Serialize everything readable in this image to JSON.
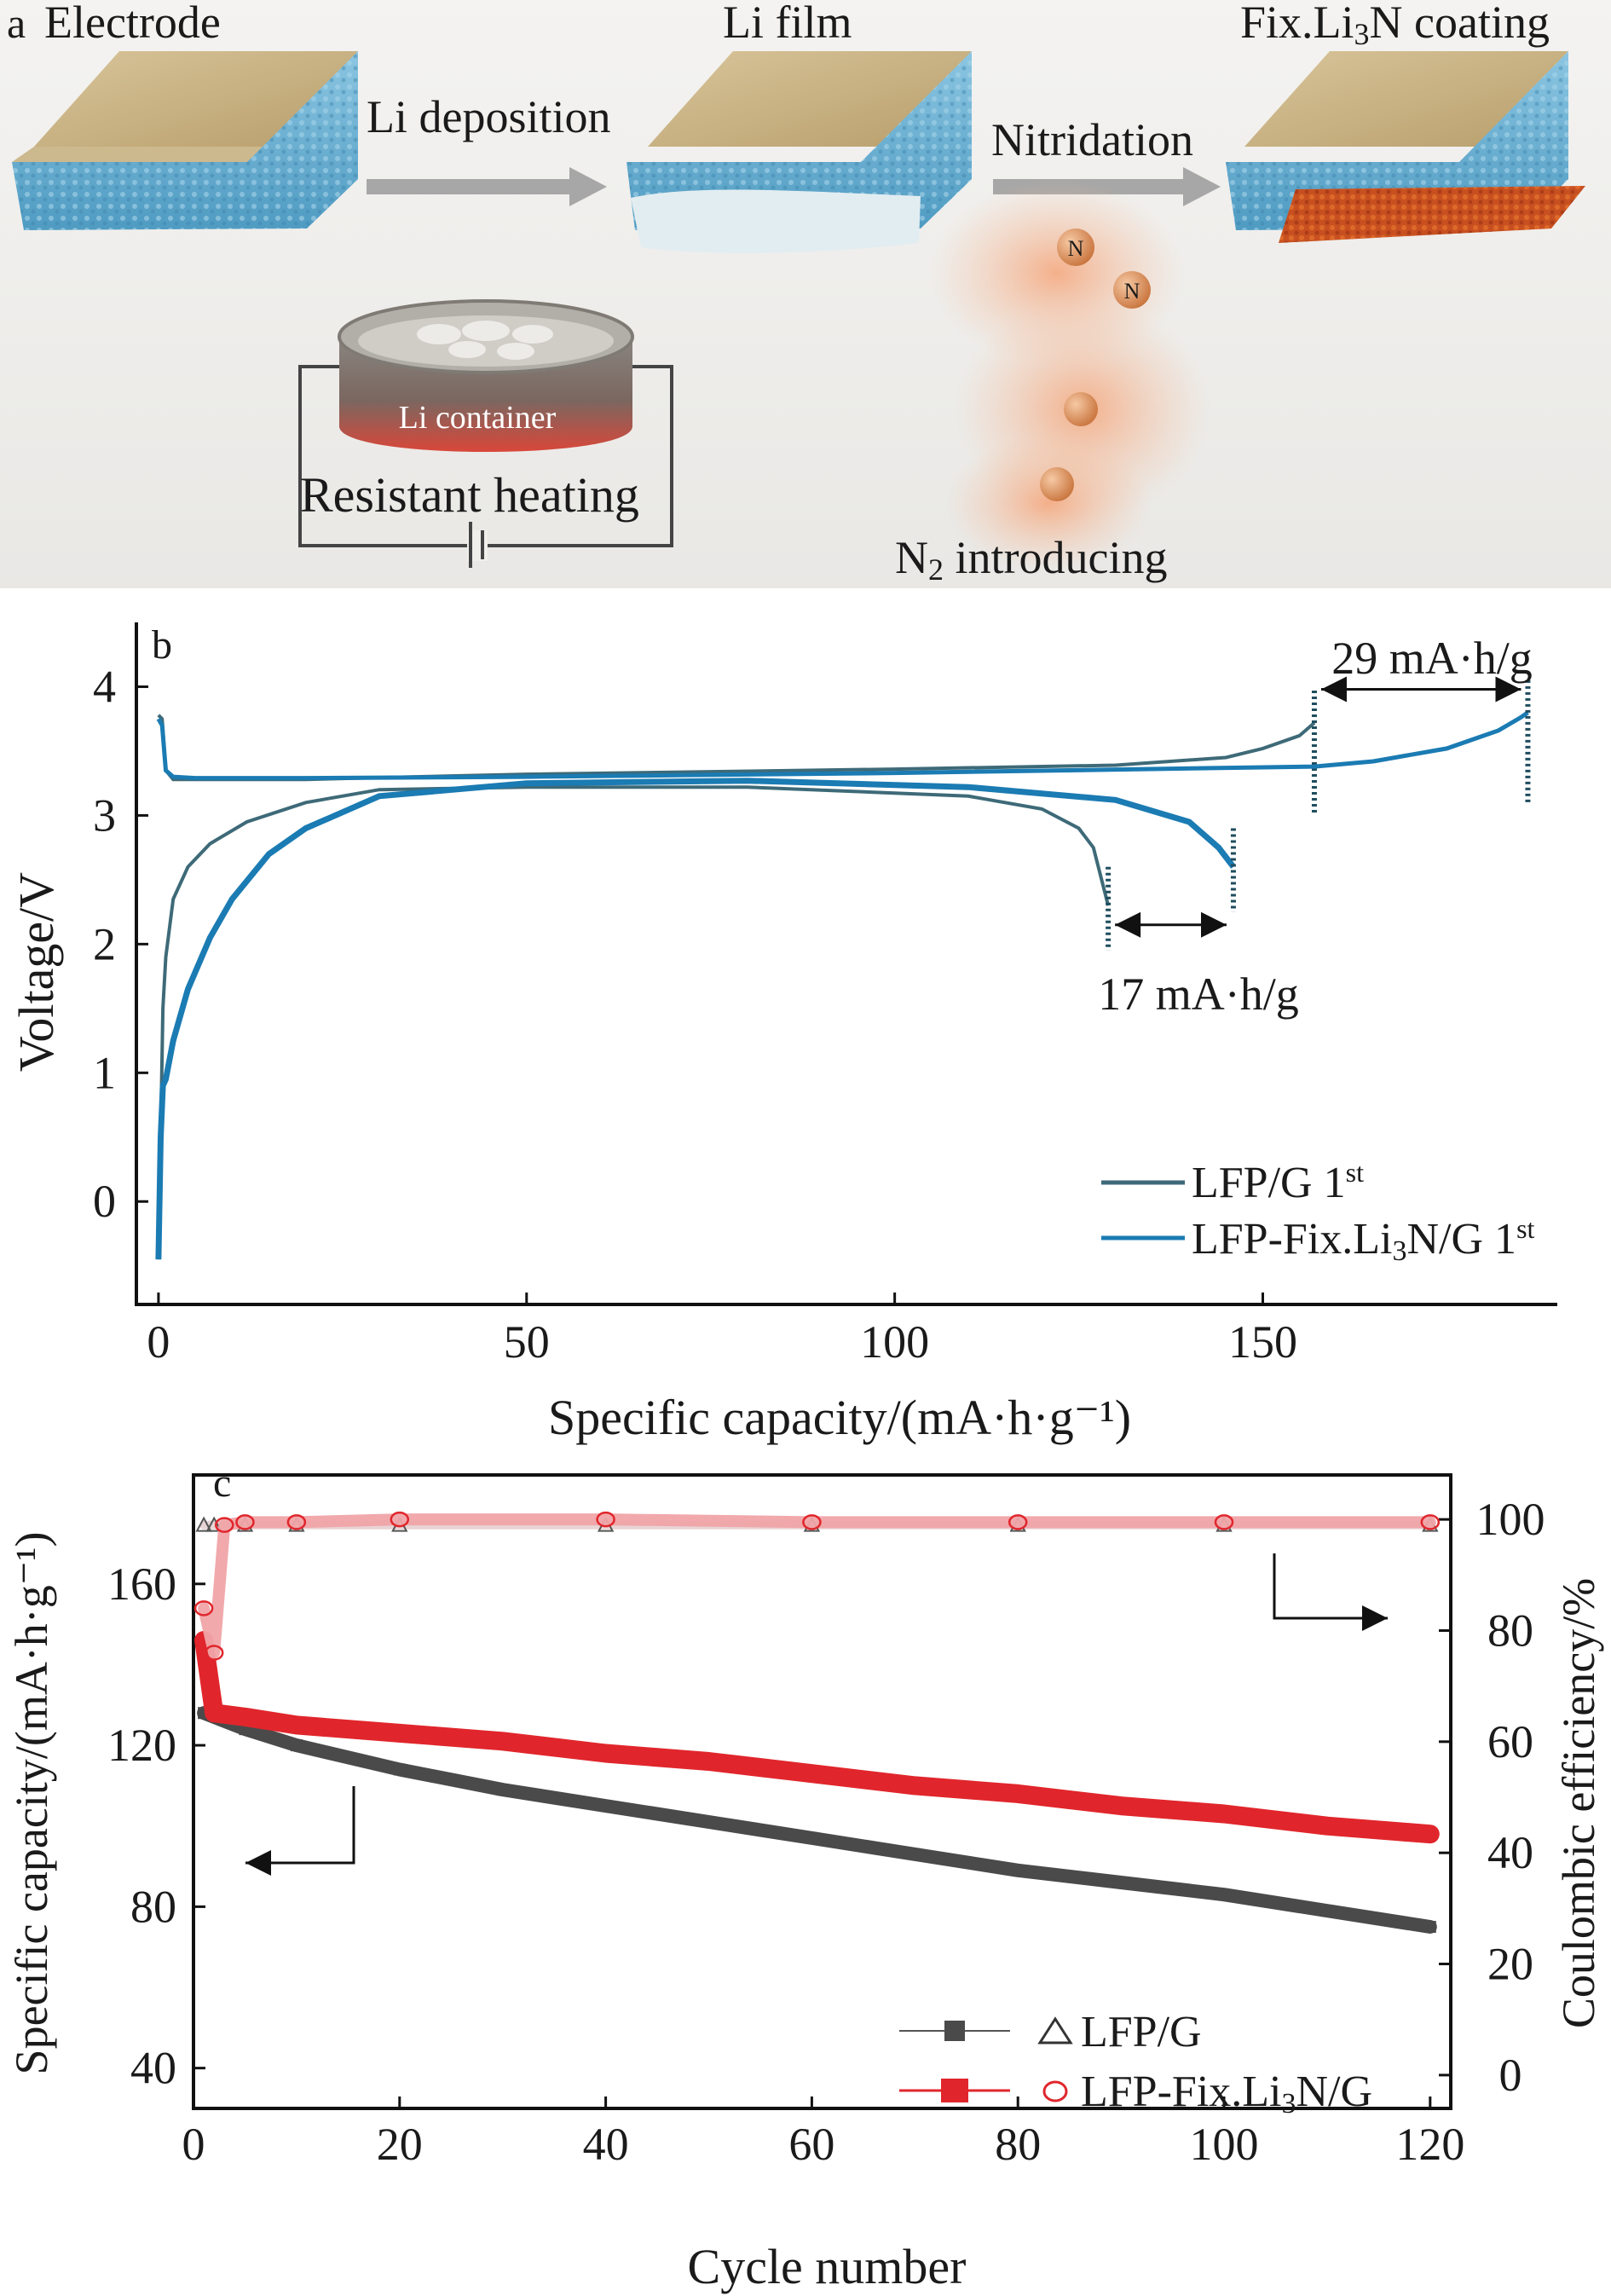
{
  "panel_a": {
    "letter": "a",
    "labels": {
      "electrode": "Electrode",
      "li_film": "Li film",
      "coating_prefix": "Fix.Li",
      "coating_sub": "3",
      "coating_suffix": "N coating",
      "li_deposition": "Li deposition",
      "nitridation": "Nitridation",
      "li_container": "Li container",
      "resistant_heating": "Resistant heating",
      "n2_prefix": "N",
      "n2_sub": "2",
      "n2_suffix": " introducing",
      "n_atom": "N"
    },
    "colors": {
      "electrode": "#6fb3d3",
      "li_film": "#dfeaee",
      "li3n": "#c6511f",
      "gas": "#f2a878"
    }
  },
  "chart_data": [
    {
      "panel": "b",
      "type": "line",
      "xlabel": "Specific capacity/(mA·h·g⁻¹)",
      "ylabel": "Voltage/V",
      "xlim": [
        -3,
        190
      ],
      "ylim": [
        -0.8,
        4.5
      ],
      "xticks": [
        0,
        50,
        100,
        150
      ],
      "yticks": [
        0,
        1,
        2,
        3,
        4
      ],
      "legend_position": "bottom-right",
      "annotations": [
        {
          "text": "29 mA·h/g",
          "from_x": 157,
          "to_x": 186,
          "y": 4.0
        },
        {
          "text": "17 mA·h/g",
          "from_x": 129,
          "to_x": 146,
          "y": 2.15
        }
      ],
      "series": [
        {
          "name": "LFP/G 1st",
          "color": "#3e6a78",
          "charge": {
            "x": [
              0,
              0.5,
              1,
              2,
              5,
              20,
              50,
              100,
              130,
              145,
              150,
              155,
              157
            ],
            "y": [
              3.78,
              3.75,
              3.35,
              3.28,
              3.28,
              3.28,
              3.32,
              3.36,
              3.39,
              3.45,
              3.52,
              3.62,
              3.72
            ]
          },
          "discharge": {
            "x": [
              0,
              0.3,
              0.6,
              1,
              2,
              4,
              7,
              12,
              20,
              30,
              50,
              80,
              110,
              120,
              125,
              127,
              129
            ],
            "y": [
              -0.45,
              0.5,
              1.5,
              1.9,
              2.35,
              2.6,
              2.78,
              2.95,
              3.1,
              3.2,
              3.22,
              3.22,
              3.15,
              3.05,
              2.9,
              2.75,
              2.3
            ]
          }
        },
        {
          "name": "LFP-Fix.Li3N/G 1st",
          "color": "#1b7bb3",
          "charge": {
            "x": [
              0,
              0.5,
              1,
              2,
              5,
              20,
              50,
              100,
              157,
              165,
              175,
              182,
              185,
              186
            ],
            "y": [
              3.75,
              3.7,
              3.35,
              3.3,
              3.29,
              3.29,
              3.3,
              3.33,
              3.38,
              3.42,
              3.52,
              3.66,
              3.76,
              3.8
            ]
          },
          "discharge": {
            "x": [
              0,
              0.3,
              0.6,
              1,
              2,
              4,
              7,
              10,
              15,
              20,
              30,
              50,
              80,
              110,
              130,
              140,
              144,
              146
            ],
            "y": [
              -0.45,
              0.5,
              0.9,
              0.95,
              1.25,
              1.65,
              2.05,
              2.35,
              2.7,
              2.9,
              3.15,
              3.25,
              3.27,
              3.22,
              3.12,
              2.95,
              2.75,
              2.6
            ]
          }
        }
      ]
    },
    {
      "panel": "c",
      "type": "scatter",
      "xlabel": "Cycle number",
      "ylabel": "Specific capacity/(mA·h·g⁻¹)",
      "y2label": "Coulombic efficiency/%",
      "xlim": [
        0,
        122
      ],
      "ylim": [
        30,
        187
      ],
      "y2lim": [
        -6,
        108
      ],
      "xticks": [
        0,
        20,
        40,
        60,
        80,
        100,
        120
      ],
      "yticks": [
        40,
        80,
        120,
        160
      ],
      "y2ticks": [
        0,
        20,
        40,
        60,
        80,
        100
      ],
      "legend_position": "bottom-center",
      "series": [
        {
          "name": "LFP/G",
          "color": "#4a4a4a",
          "capacity": {
            "x": [
              1,
              5,
              10,
              20,
              30,
              40,
              50,
              60,
              70,
              80,
              90,
              100,
              110,
              120
            ],
            "y": [
              128,
              124,
              120,
              114,
              109,
              105,
              101,
              97,
              93,
              89,
              86,
              83,
              79,
              75
            ]
          },
          "efficiency": {
            "x": [
              1,
              2,
              5,
              10,
              20,
              40,
              60,
              80,
              100,
              120
            ],
            "y": [
              99,
              99,
              99,
              99,
              99,
              99,
              99,
              99,
              99,
              99
            ]
          }
        },
        {
          "name": "LFP-Fix.Li3N/G",
          "color": "#e0262c",
          "capacity": {
            "x": [
              1,
              2,
              5,
              10,
              20,
              30,
              40,
              50,
              60,
              70,
              80,
              90,
              100,
              110,
              120
            ],
            "y": [
              146,
              128,
              127,
              125,
              123,
              121,
              118,
              116,
              113,
              110,
              108,
              105,
              103,
              100,
              98
            ]
          },
          "efficiency": {
            "x": [
              1,
              2,
              3,
              5,
              10,
              20,
              40,
              60,
              80,
              100,
              120
            ],
            "y": [
              84,
              76,
              99,
              99.5,
              99.5,
              100,
              100,
              99.5,
              99.5,
              99.5,
              99.5
            ]
          }
        }
      ]
    }
  ]
}
